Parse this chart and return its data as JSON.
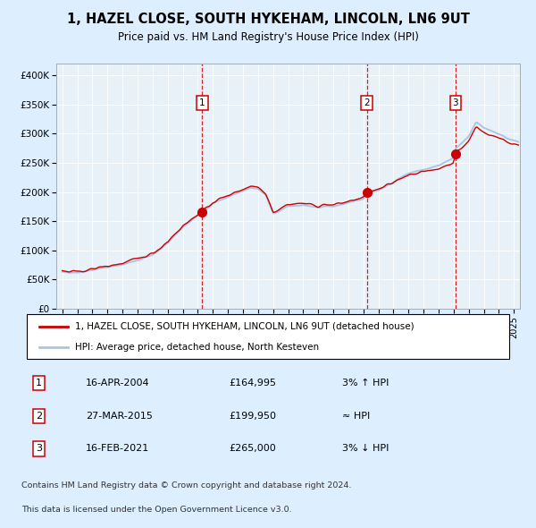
{
  "title1": "1, HAZEL CLOSE, SOUTH HYKEHAM, LINCOLN, LN6 9UT",
  "title2": "Price paid vs. HM Land Registry's House Price Index (HPI)",
  "legend_line1": "1, HAZEL CLOSE, SOUTH HYKEHAM, LINCOLN, LN6 9UT (detached house)",
  "legend_line2": "HPI: Average price, detached house, North Kesteven",
  "table": [
    {
      "num": "1",
      "date": "16-APR-2004",
      "price": "£164,995",
      "rel": "3% ↑ HPI"
    },
    {
      "num": "2",
      "date": "27-MAR-2015",
      "price": "£199,950",
      "rel": "≈ HPI"
    },
    {
      "num": "3",
      "date": "16-FEB-2021",
      "price": "£265,000",
      "rel": "3% ↓ HPI"
    }
  ],
  "footer1": "Contains HM Land Registry data © Crown copyright and database right 2024.",
  "footer2": "This data is licensed under the Open Government Licence v3.0.",
  "sale_dates_decimal": [
    2004.29,
    2015.23,
    2021.12
  ],
  "sale_prices": [
    164995,
    199950,
    265000
  ],
  "sale_labels": [
    "1",
    "2",
    "3"
  ],
  "hpi_color": "#aac4e0",
  "price_color": "#cc0000",
  "bg_color": "#ddeeff",
  "plot_bg": "#e8f0f8",
  "ylim": [
    0,
    420000
  ],
  "xlim_start": 1994.6,
  "xlim_end": 2025.4
}
